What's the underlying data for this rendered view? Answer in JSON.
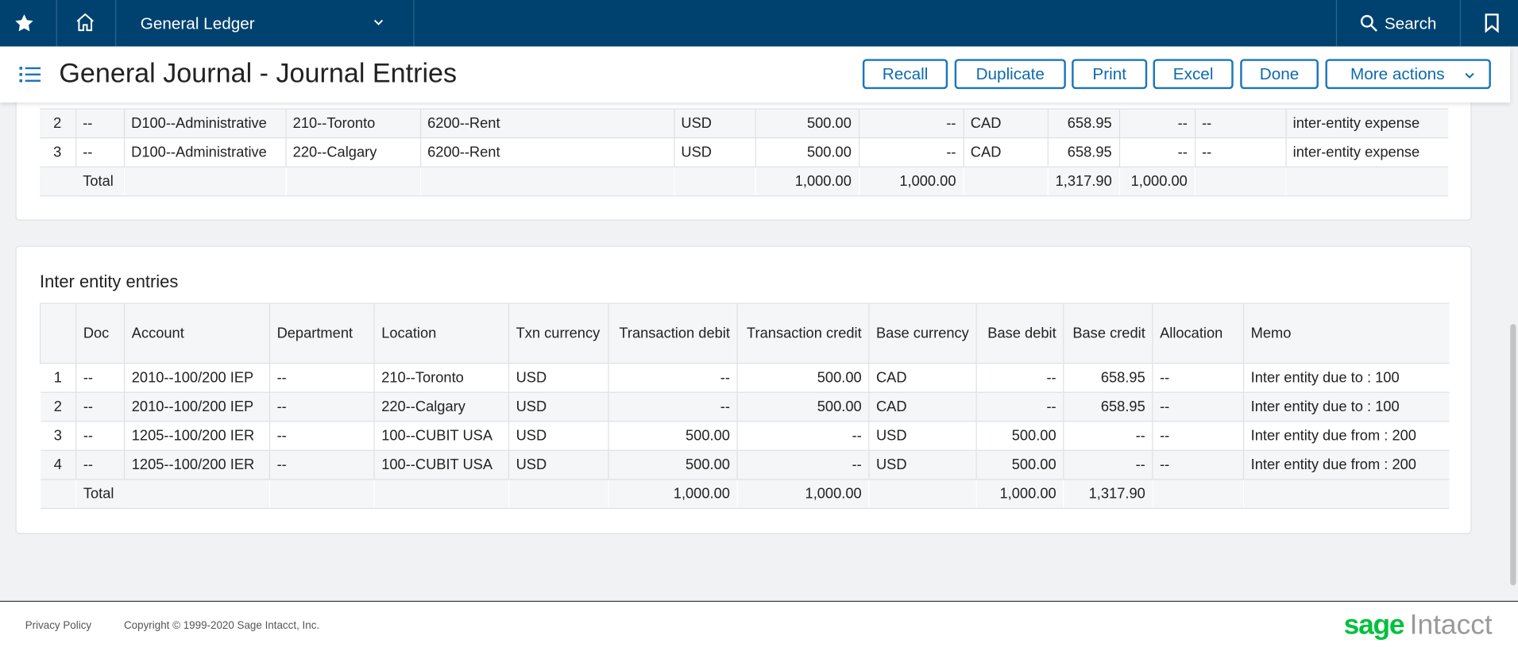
{
  "nav": {
    "module": "General Ledger",
    "search": "Search"
  },
  "header": {
    "title": "General Journal - Journal Entries",
    "actions": [
      "Recall",
      "Duplicate",
      "Print",
      "Excel",
      "Done",
      "More actions"
    ]
  },
  "upper_table": {
    "rows": [
      [
        "2",
        "--",
        "D100--Administrative",
        "210--Toronto",
        "6200--Rent",
        "USD",
        "500.00",
        "--",
        "CAD",
        "658.95",
        "--",
        "--",
        "inter-entity expense"
      ],
      [
        "3",
        "--",
        "D100--Administrative",
        "220--Calgary",
        "6200--Rent",
        "USD",
        "500.00",
        "--",
        "CAD",
        "658.95",
        "--",
        "--",
        "inter-entity expense"
      ]
    ],
    "total": {
      "label": "Total",
      "cells": [
        {
          "col": 6,
          "text": "1,000.00"
        },
        {
          "col": 7,
          "text": "1,000.00"
        },
        {
          "col": 9,
          "text": "1,317.90"
        },
        {
          "col": 10,
          "text": "1,000.00"
        }
      ]
    }
  },
  "inter_entity": {
    "title": "Inter entity entries",
    "columns": [
      "Doc",
      "Account",
      "Department",
      "Location",
      "Txn currency",
      "Transaction debit",
      "Transaction credit",
      "Base currency",
      "Base debit",
      "Base credit",
      "Allocation",
      "Memo"
    ],
    "rows": [
      [
        "1",
        "--",
        "2010--100/200 IEP",
        "--",
        "210--Toronto",
        "USD",
        "--",
        "500.00",
        "CAD",
        "--",
        "658.95",
        "--",
        "Inter entity due to : 100"
      ],
      [
        "2",
        "--",
        "2010--100/200 IEP",
        "--",
        "220--Calgary",
        "USD",
        "--",
        "500.00",
        "CAD",
        "--",
        "658.95",
        "--",
        "Inter entity due to : 100"
      ],
      [
        "3",
        "--",
        "1205--100/200 IER",
        "--",
        "100--CUBIT USA",
        "USD",
        "500.00",
        "--",
        "USD",
        "500.00",
        "--",
        "--",
        "Inter entity due from : 200"
      ],
      [
        "4",
        "--",
        "1205--100/200 IER",
        "--",
        "100--CUBIT USA",
        "USD",
        "500.00",
        "--",
        "USD",
        "500.00",
        "--",
        "--",
        "Inter entity due from : 200"
      ]
    ],
    "total": {
      "label": "Total",
      "cells": [
        {
          "col": 6,
          "text": "1,000.00"
        },
        {
          "col": 7,
          "text": "1,000.00"
        },
        {
          "col": 9,
          "text": "1,000.00"
        },
        {
          "col": 10,
          "text": "1,317.90"
        }
      ]
    }
  },
  "footer": {
    "privacy": "Privacy Policy",
    "copyright": "Copyright © 1999-2020 Sage Intacct, Inc.",
    "logo": {
      "brand": "sage",
      "product": "Intacct"
    }
  }
}
